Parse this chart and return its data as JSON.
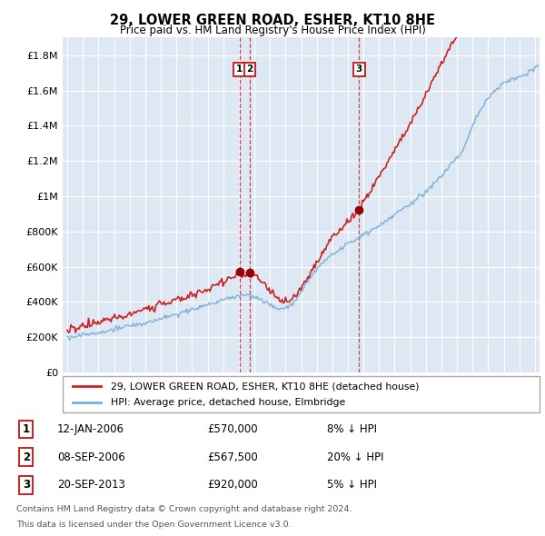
{
  "title": "29, LOWER GREEN ROAD, ESHER, KT10 8HE",
  "subtitle": "Price paid vs. HM Land Registry's House Price Index (HPI)",
  "ytick_values": [
    0,
    200000,
    400000,
    600000,
    800000,
    1000000,
    1200000,
    1400000,
    1600000,
    1800000
  ],
  "ylim": [
    0,
    1900000
  ],
  "xlim_start": 1994.7,
  "xlim_end": 2025.3,
  "hpi_color": "#7aaed6",
  "price_color": "#cc2222",
  "background_color": "#dde8f4",
  "grid_color": "#ffffff",
  "sale_dates": [
    2006.04,
    2006.71,
    2013.72
  ],
  "sale_prices": [
    570000,
    567500,
    920000
  ],
  "sale_labels": [
    "1",
    "2",
    "3"
  ],
  "legend_sale_label": "29, LOWER GREEN ROAD, ESHER, KT10 8HE (detached house)",
  "legend_hpi_label": "HPI: Average price, detached house, Elmbridge",
  "table_entries": [
    {
      "num": "1",
      "date": "12-JAN-2006",
      "price": "£570,000",
      "hpi": "8% ↓ HPI"
    },
    {
      "num": "2",
      "date": "08-SEP-2006",
      "price": "£567,500",
      "hpi": "20% ↓ HPI"
    },
    {
      "num": "3",
      "date": "20-SEP-2013",
      "price": "£920,000",
      "hpi": "5% ↓ HPI"
    }
  ],
  "footnote1": "Contains HM Land Registry data © Crown copyright and database right 2024.",
  "footnote2": "This data is licensed under the Open Government Licence v3.0."
}
